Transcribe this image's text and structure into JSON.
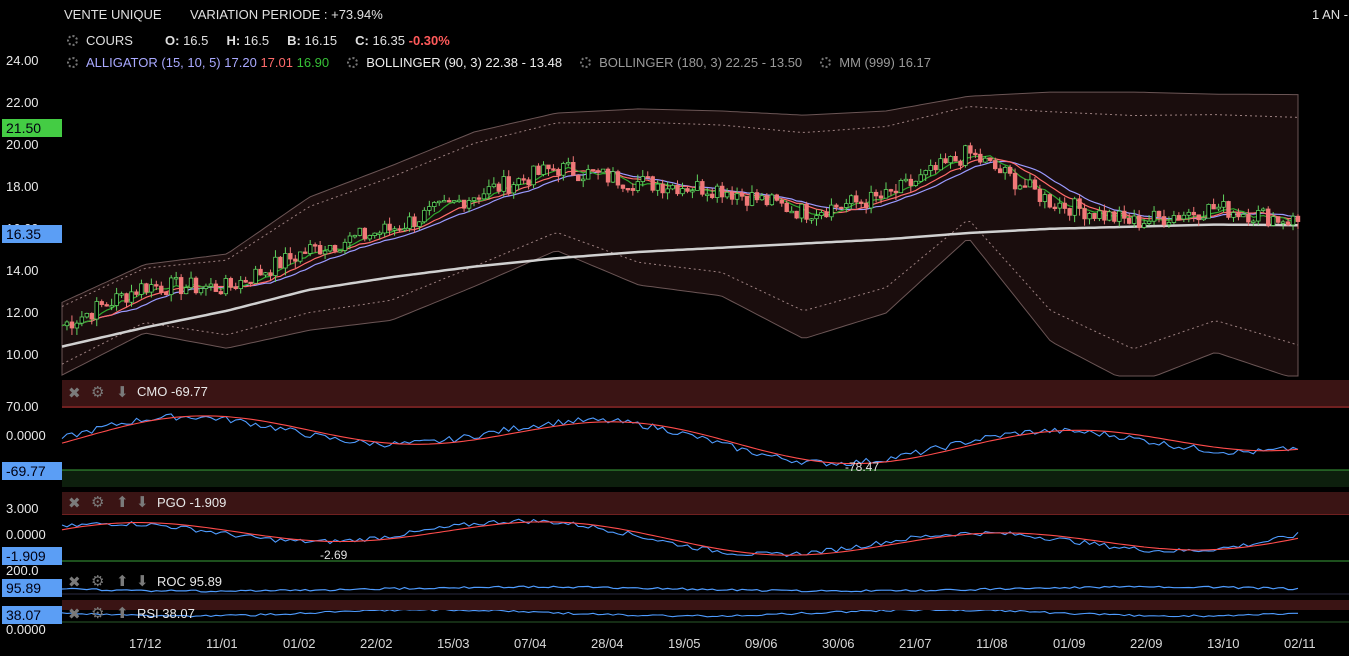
{
  "header": {
    "title": "VENTE UNIQUE",
    "variation": "VARIATION PERIODE : +73.94%",
    "range": "1 AN -",
    "cours_label": "COURS",
    "o_label": "O:",
    "o_val": "16.5",
    "h_label": "H:",
    "h_val": "16.5",
    "b_label": "B:",
    "b_val": "16.15",
    "c_label": "C:",
    "c_val": "16.35",
    "change": "-0.30%",
    "alligator_label": "ALLIGATOR (15, 10, 5)",
    "alligator_v1": "17.20",
    "alligator_v2": "17.01",
    "alligator_v3": "16.90",
    "boll1": "BOLLINGER (90, 3) 22.38 - 13.48",
    "boll2": "BOLLINGER (180, 3) 22.25 - 13.50",
    "mm": "MM (999) 16.17"
  },
  "price_axis": {
    "ticks": [
      "24.00",
      "22.00",
      "20.00",
      "18.00",
      "16.00",
      "14.00",
      "12.00",
      "10.00"
    ],
    "high_tag": "21.50",
    "last_tag": "16.35"
  },
  "panels": {
    "cmo": {
      "label": "CMO -69.77",
      "top": "70.00",
      "mid": "0.0000",
      "tag": "-69.77",
      "min_note": "-78.47"
    },
    "pgo": {
      "label": "PGO -1.909",
      "top": "3.000",
      "mid": "0.0000",
      "tag": "-1.909",
      "min_note": "-2.69"
    },
    "roc": {
      "label": "ROC 95.89",
      "top": "200.0",
      "tag": "95.89"
    },
    "rsi": {
      "label": "RSI 38.07",
      "bottom": "0.0000",
      "tag": "38.07"
    }
  },
  "x_axis": [
    "17/12",
    "11/01",
    "01/02",
    "22/02",
    "15/03",
    "07/04",
    "28/04",
    "19/05",
    "09/06",
    "30/06",
    "21/07",
    "11/08",
    "01/09",
    "22/09",
    "13/10",
    "02/11"
  ],
  "colors": {
    "up": "#5fd35f",
    "down": "#f07878",
    "alligator_jaw": "#9a9aff",
    "alligator_teeth": "#ff6b6b",
    "alligator_lips": "#2faa2f",
    "mm": "#d0d0d0",
    "band": "#1a0d0d",
    "high_tag": "#4cd44c",
    "last_tag": "#5aa0ff"
  },
  "chart_data": {
    "type": "line",
    "title": "VENTE UNIQUE",
    "xlabel": "",
    "ylabel": "",
    "ylim": [
      9,
      24.5
    ],
    "x": [
      "17/12",
      "11/01",
      "01/02",
      "22/02",
      "15/03",
      "07/04",
      "28/04",
      "19/05",
      "09/06",
      "30/06",
      "21/07",
      "11/08",
      "01/09",
      "22/09",
      "13/10",
      "02/11"
    ],
    "series": [
      {
        "name": "COURS",
        "values": [
          11.4,
          13.3,
          13.2,
          15.0,
          16.0,
          17.6,
          18.9,
          18.2,
          17.9,
          16.8,
          17.5,
          19.6,
          17.3,
          16.3,
          17.0,
          16.35
        ]
      },
      {
        "name": "BOLLINGER (90, 3)",
        "values": [
          12.5,
          14.3,
          14.8,
          17.5,
          19.0,
          20.6,
          21.5,
          21.7,
          21.6,
          21.4,
          21.6,
          22.3,
          22.5,
          22.5,
          22.4,
          22.38
        ]
      },
      {
        "name": "MM (999)",
        "values": [
          10.4,
          11.3,
          12.1,
          13.1,
          13.7,
          14.2,
          14.6,
          14.9,
          15.1,
          15.3,
          15.5,
          15.8,
          16.0,
          16.1,
          16.2,
          16.17
        ]
      }
    ]
  }
}
